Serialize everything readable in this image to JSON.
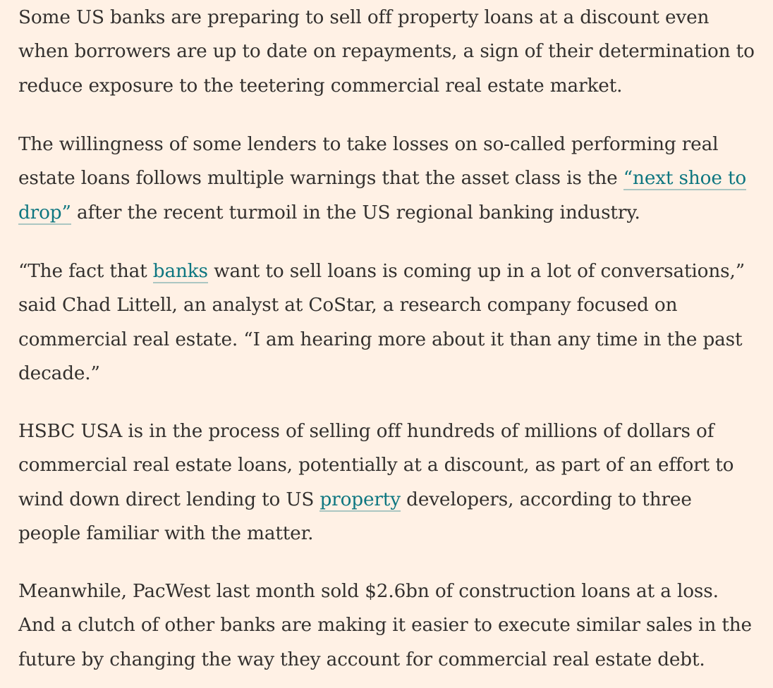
{
  "article": {
    "p1": {
      "text": "Some US banks are preparing to sell off property loans at a discount even when borrowers are up to date on repayments, a sign of their determination to reduce exposure to the teetering commercial real estate market."
    },
    "p2": {
      "before": "The willingness of some lenders to take losses on so-called performing real estate loans follows multiple warnings that the asset class is the ",
      "link": "“next shoe to drop”",
      "after": " after the recent turmoil in the US regional banking industry."
    },
    "p3": {
      "before": "“The fact that ",
      "link": "banks",
      "after": " want to sell loans is coming up in a lot of conversations,” said Chad Littell, an analyst at CoStar, a research company focused on commercial real estate. “I am hearing more about it than any time in the past decade.”"
    },
    "p4": {
      "before": "HSBC USA is in the process of selling off hundreds of millions of dollars of commercial real estate loans, potentially at a discount, as part of an effort to wind down direct lending to US ",
      "link": "property",
      "after": " developers, according to three people familiar with the matter."
    },
    "p5": {
      "text": "Meanwhile, PacWest last month sold $2.6bn of construction loans at a loss. And a clutch of other banks are making it easier to execute similar sales in the future by changing the way they account for commercial real estate debt."
    }
  },
  "colors": {
    "background": "#fff1e5",
    "text": "#33302e",
    "link": "#0d7680"
  }
}
